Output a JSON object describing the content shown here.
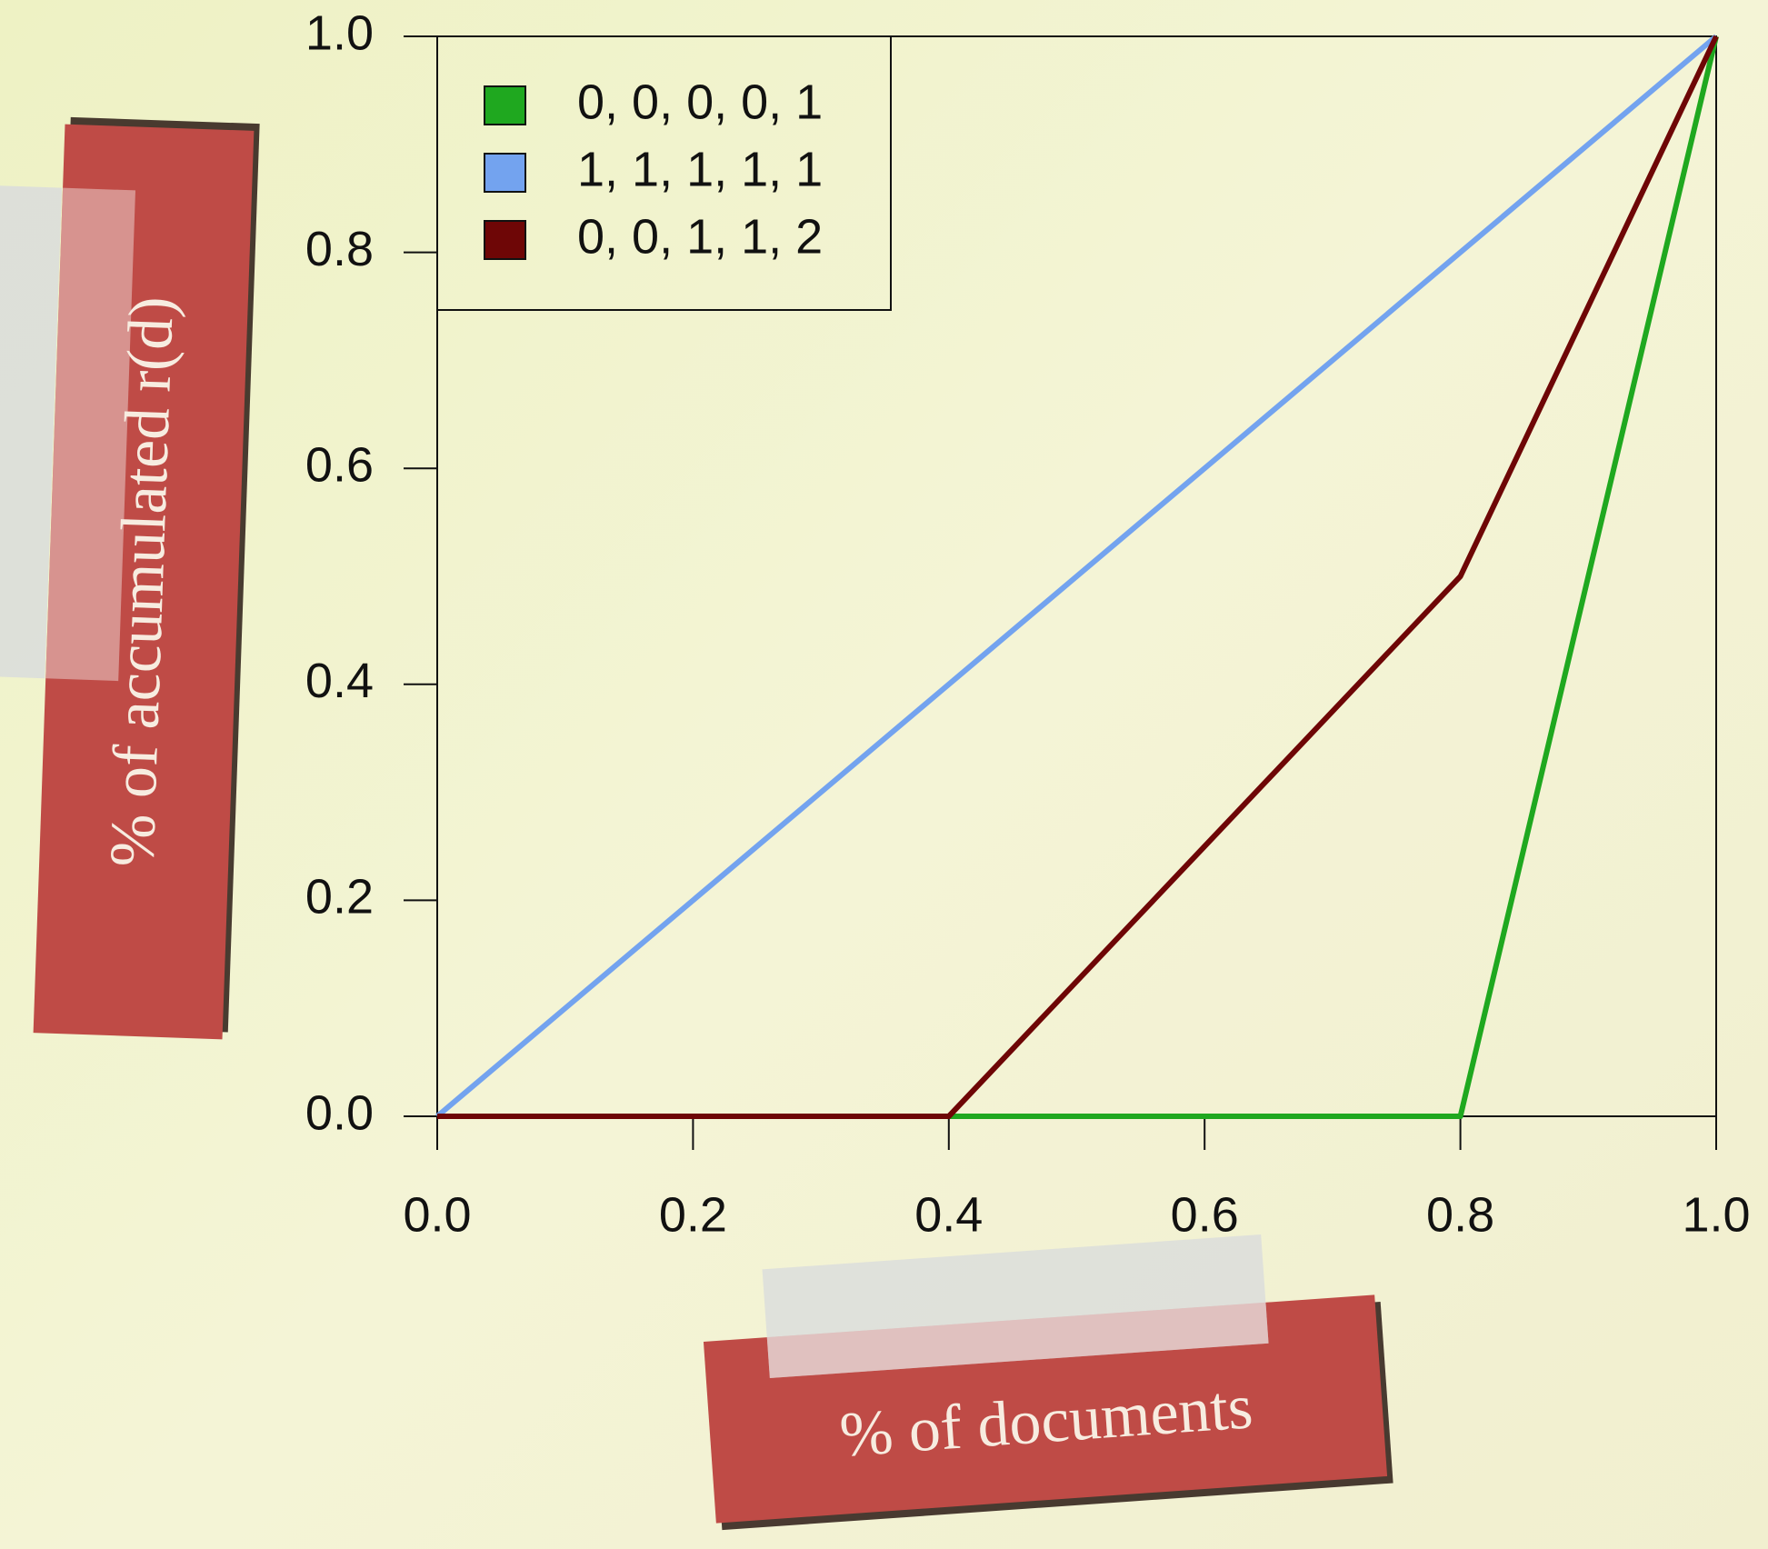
{
  "chart_data": {
    "type": "line",
    "x_label": "% of documents",
    "y_label": "% of accumulated r(d)",
    "x": [
      0,
      0.2,
      0.4,
      0.6,
      0.8,
      1
    ],
    "series": [
      {
        "name": "0, 0, 0, 0, 1",
        "color": "#1fa81f",
        "values": [
          0,
          0,
          0,
          0,
          0,
          1
        ]
      },
      {
        "name": "1, 1, 1, 1, 1",
        "color": "#73a3ef",
        "values": [
          0,
          0.2,
          0.4,
          0.6,
          0.8,
          1
        ]
      },
      {
        "name": "0, 0, 1, 1, 2",
        "color": "#6e0606",
        "values": [
          0,
          0,
          0,
          0.25,
          0.5,
          1
        ]
      }
    ],
    "xlim": [
      0,
      1
    ],
    "ylim": [
      0,
      1
    ],
    "xticks": [
      {
        "value": 0,
        "label": "0.0"
      },
      0.2,
      0.4,
      0.6,
      0.8,
      {
        "value": 1,
        "label": "1.0"
      }
    ],
    "yticks": [
      {
        "value": 0,
        "label": "0.0"
      },
      0.2,
      0.4,
      0.6,
      0.8,
      {
        "value": 1,
        "label": "1.0"
      }
    ],
    "legend": "top-left"
  }
}
